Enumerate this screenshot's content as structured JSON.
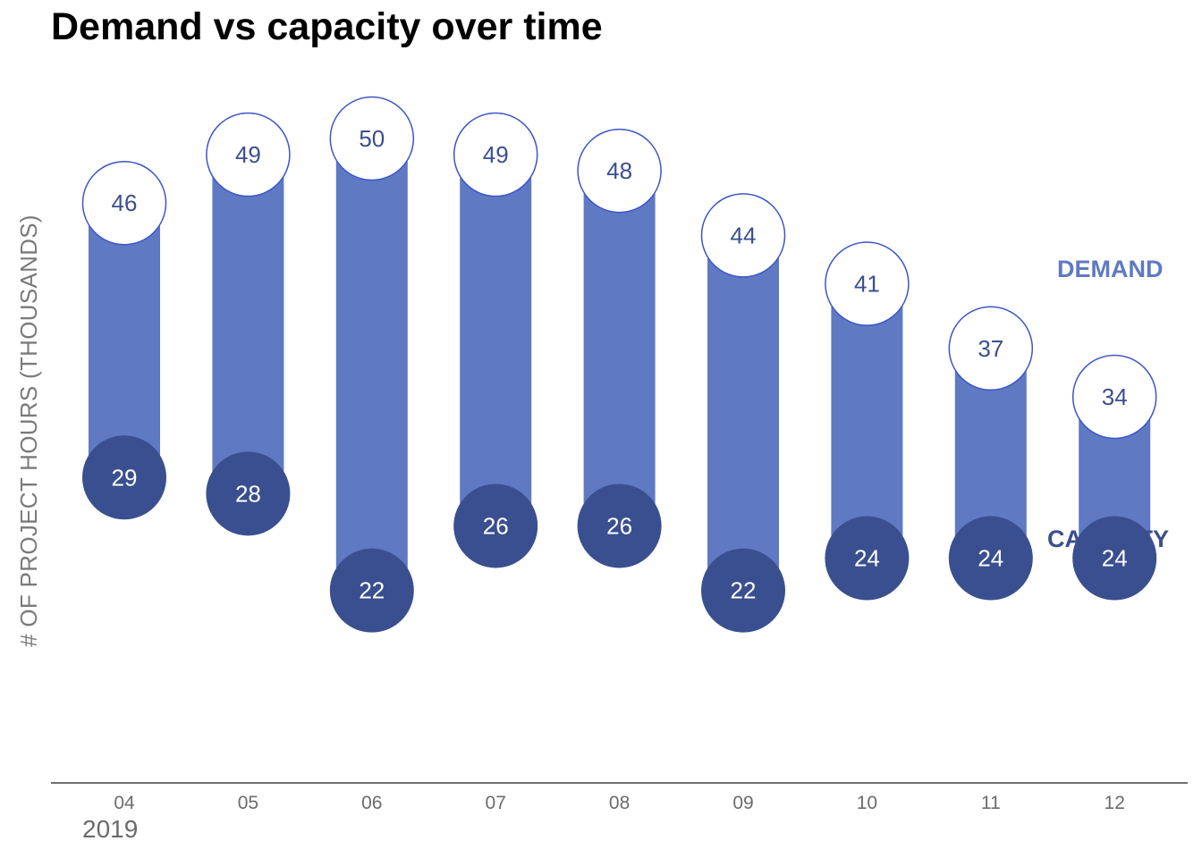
{
  "chart_data": {
    "type": "dumbbell",
    "title": "Demand vs capacity over time",
    "ylabel": "# OF PROJECT HOURS (THOUSANDS)",
    "xlabel": "",
    "year_label": "2019",
    "categories": [
      "04",
      "05",
      "06",
      "07",
      "08",
      "09",
      "10",
      "11",
      "12"
    ],
    "series": [
      {
        "name": "DEMAND",
        "values": [
          46,
          49,
          50,
          49,
          48,
          44,
          41,
          37,
          34
        ]
      },
      {
        "name": "CAPACITY",
        "values": [
          29,
          28,
          22,
          26,
          26,
          22,
          24,
          24,
          24
        ]
      }
    ],
    "legend_placement": "right, beside last category",
    "grid": false,
    "colors": {
      "demand_bar": "#5f79c3",
      "demand_marker_fill": "#ffffff",
      "demand_marker_stroke": "#3b55c9",
      "demand_label": "#3a4f8f",
      "capacity_marker": "#3a4f8f",
      "capacity_label": "#ffffff",
      "legend_demand": "#5f79c3",
      "legend_capacity": "#3a4f8f",
      "axis": "#6e6e6e",
      "tick_label": "#6b6b6b"
    }
  }
}
